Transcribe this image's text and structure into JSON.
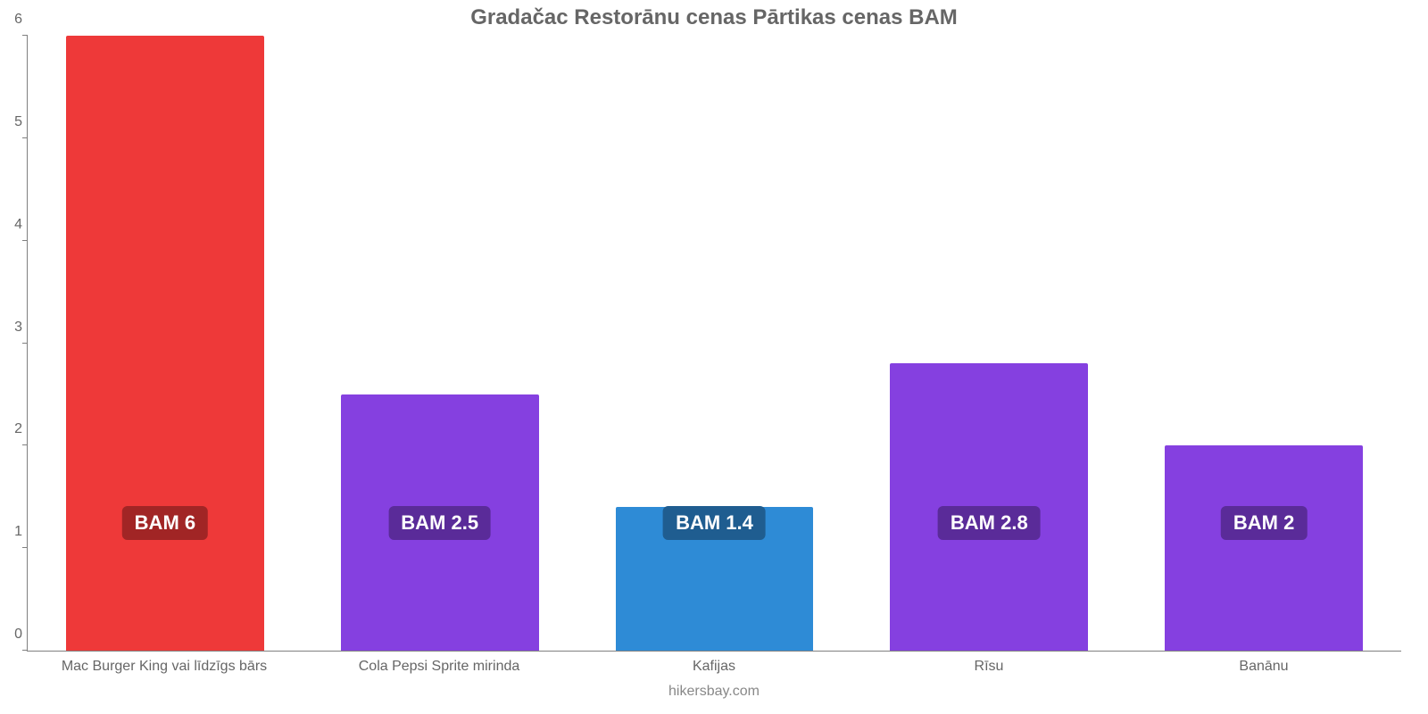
{
  "chart": {
    "type": "bar",
    "title": "Gradačac Restorānu cenas Pārtikas cenas BAM",
    "title_color": "#666666",
    "title_fontsize": 24,
    "title_fontweight": 700,
    "attribution": "hikersbay.com",
    "attribution_color": "#888888",
    "attribution_fontsize": 16,
    "background_color": "#ffffff",
    "axis_color": "#808080",
    "ylim": [
      0,
      6
    ],
    "yticks": [
      0,
      1,
      2,
      3,
      4,
      5,
      6
    ],
    "ytick_label_color": "#666666",
    "ytick_label_fontsize": 16,
    "xlabel_color": "#666666",
    "xlabel_fontsize": 16,
    "bar_width_pct": 72,
    "value_badge_fontsize": 22,
    "value_badge_text_color": "#ffffff",
    "categories": [
      "Mac Burger King vai līdzīgs bārs",
      "Cola Pepsi Sprite mirinda",
      "Kafijas",
      "Rīsu",
      "Banānu"
    ],
    "values": [
      6,
      2.5,
      1.4,
      2.8,
      2
    ],
    "value_labels": [
      "BAM 6",
      "BAM 2.5",
      "BAM 1.4",
      "BAM 2.8",
      "BAM 2"
    ],
    "bar_colors": [
      "#ee3939",
      "#8540e0",
      "#2e8bd6",
      "#8540e0",
      "#8540e0"
    ],
    "badge_colors": [
      "#a12525",
      "#5a2b99",
      "#1f5d90",
      "#5a2b99",
      "#5a2b99"
    ]
  }
}
